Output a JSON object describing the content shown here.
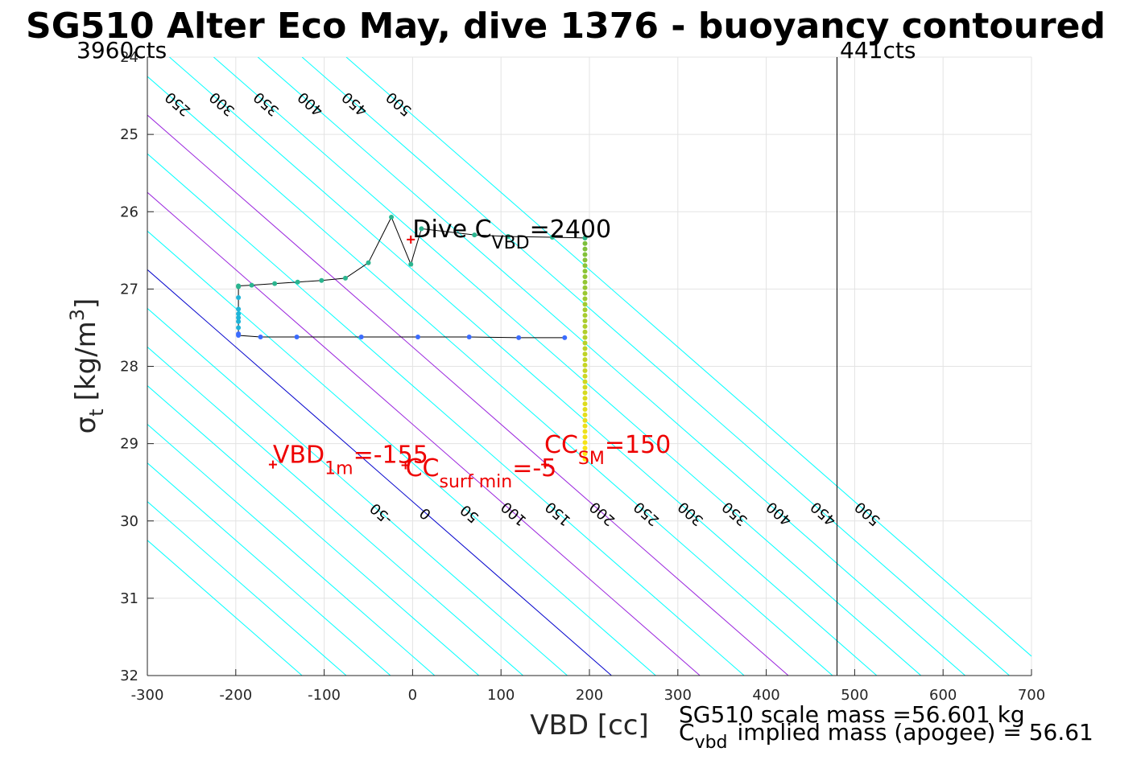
{
  "chart_data": {
    "type": "scatter",
    "title": "SG510 Alter Eco May, dive 1376 - buoyancy contoured",
    "xlabel": "VBD [cc]",
    "ylabel_main": "σ",
    "ylabel_sub": "t",
    "ylabel_unit": "[kg/m",
    "ylabel_sup": "3",
    "ylabel_close": "]",
    "xlim": [
      -300,
      700
    ],
    "ylim": [
      24,
      32
    ],
    "y_reversed": true,
    "grid": true,
    "x_ticks": [
      -300,
      -200,
      -100,
      0,
      100,
      200,
      300,
      400,
      500,
      600,
      700
    ],
    "x_tick_labels": [
      "-300",
      "-200",
      "-100",
      "0",
      "100",
      "200",
      "300",
      "400",
      "500",
      "600",
      "700"
    ],
    "y_ticks": [
      24,
      25,
      26,
      27,
      28,
      29,
      30,
      31,
      32
    ],
    "y_tick_labels": [
      "24",
      "25",
      "26",
      "27",
      "28",
      "29",
      "30",
      "31",
      "32"
    ],
    "corner_labels": {
      "left": "3960cts",
      "right": "441cts"
    },
    "vline_x": 480,
    "contours": {
      "values": [
        -350,
        -300,
        -250,
        -200,
        -150,
        -100,
        -50,
        0,
        50,
        100,
        150,
        200,
        250,
        300,
        350,
        400,
        450,
        500
      ],
      "upper_labels": [
        "-350",
        "-300",
        "-250",
        "-200",
        "-150",
        "-100",
        "-50",
        "0",
        "50",
        "100",
        "150",
        "200",
        "250",
        "300",
        "350",
        "400",
        "450",
        "500"
      ],
      "lower_labels": [
        "-50",
        "0",
        "50",
        "100",
        "150",
        "200",
        "250",
        "300",
        "350",
        "400",
        "450",
        "500"
      ],
      "colors": {
        "default": "#00ffff",
        "zero": "#0000cc",
        "highlight": "#9922dd"
      },
      "highlight_values": [
        100,
        200
      ]
    },
    "series": [
      {
        "color": "#000000",
        "points": [
          [
            172,
            27.63
          ],
          [
            120,
            27.63
          ],
          [
            64,
            27.62
          ],
          [
            6,
            27.62
          ],
          [
            -58,
            27.62
          ],
          [
            -131,
            27.62
          ],
          [
            -172,
            27.62
          ],
          [
            -197,
            27.6
          ],
          [
            -197,
            27.58
          ],
          [
            -197,
            27.5
          ],
          [
            -197,
            27.42
          ],
          [
            -197,
            27.37
          ],
          [
            -197,
            27.32
          ],
          [
            -197,
            27.26
          ],
          [
            -197,
            27.11
          ],
          [
            -197,
            26.97
          ],
          [
            -197,
            26.96
          ],
          [
            -182,
            26.95
          ],
          [
            -156,
            26.93
          ],
          [
            -130,
            26.91
          ],
          [
            -103,
            26.89
          ],
          [
            -76,
            26.86
          ],
          [
            -50,
            26.66
          ],
          [
            -24,
            26.07
          ],
          [
            -2,
            26.68
          ],
          [
            10,
            26.22
          ],
          [
            70,
            26.3
          ],
          [
            108,
            26.32
          ],
          [
            158,
            26.33
          ],
          [
            195,
            26.34
          ]
        ],
        "vertical_segment": {
          "x": 195,
          "y_from": 26.34,
          "y_to": 29.2
        }
      }
    ],
    "annotations": [
      {
        "x": 0,
        "y": 26.33,
        "color": "#000000",
        "main": "Dive C",
        "sub": "VBD",
        "tail": "=2400"
      },
      {
        "x": -158,
        "y": 29.25,
        "color": "#ee0000",
        "main": "VBD",
        "sub": "1m",
        "tail": "=-155"
      },
      {
        "x": -8,
        "y": 29.42,
        "color": "#ee0000",
        "main": "CC",
        "sub": "surf min",
        "tail": "=-5"
      },
      {
        "x": 149,
        "y": 29.12,
        "color": "#ee0000",
        "main": "CC",
        "sub": "SM",
        "tail": "=150"
      }
    ],
    "red_markers": [
      [
        -2,
        26.36
      ],
      [
        -158,
        29.27
      ],
      [
        -8,
        29.28
      ],
      [
        150,
        29.27
      ]
    ],
    "footer": {
      "line1": "SG510 scale mass =56.601 kg",
      "line2_main": "C",
      "line2_sub": "vbd",
      "line2_tail": "implied mass (apogee) = 56.61"
    }
  }
}
